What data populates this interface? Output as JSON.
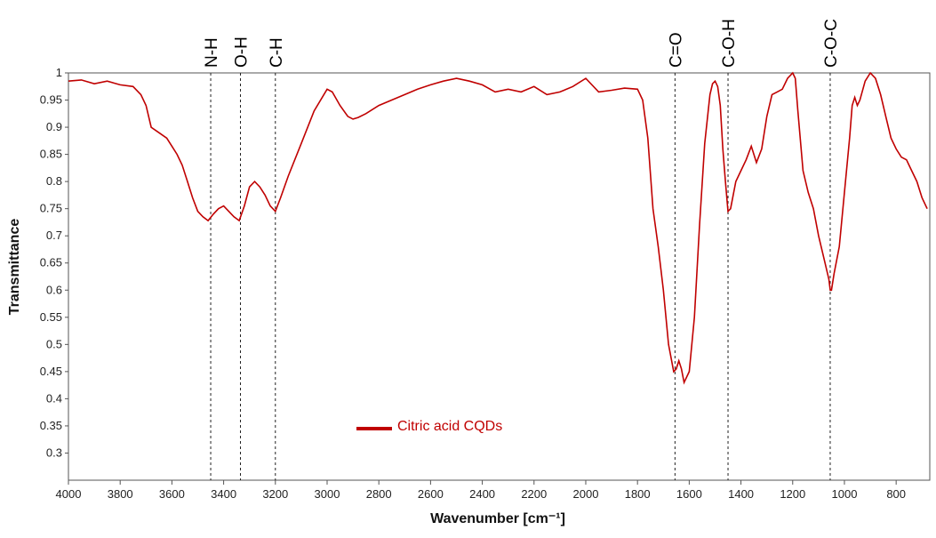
{
  "chart_data": {
    "type": "line",
    "xlabel": "Wavenumber [cm⁻¹]",
    "ylabel": "Transmittance",
    "xlim": [
      4000,
      670
    ],
    "ylim": [
      0.25,
      1.0
    ],
    "x_ticks": [
      4000,
      3800,
      3600,
      3400,
      3200,
      3000,
      2800,
      2600,
      2400,
      2200,
      2000,
      1800,
      1600,
      1400,
      1200,
      1000,
      800
    ],
    "y_ticks": [
      0.3,
      0.35,
      0.4,
      0.45,
      0.5,
      0.55,
      0.6,
      0.65,
      0.7,
      0.75,
      0.8,
      0.85,
      0.9,
      0.95,
      1
    ],
    "y_tick_labels": [
      "0.3",
      "0.35",
      "0.4",
      "0.45",
      "0.5",
      "0.55",
      "0.6",
      "0.65",
      "0.7",
      "0.75",
      "0.8",
      "0.85",
      "0.9",
      "0.95",
      "1"
    ],
    "grid": false,
    "series": [
      {
        "name": "Citric acid CQDs",
        "color": "#c00000",
        "x": [
          4000,
          3950,
          3900,
          3850,
          3800,
          3750,
          3720,
          3700,
          3680,
          3650,
          3620,
          3600,
          3580,
          3560,
          3540,
          3520,
          3500,
          3480,
          3460,
          3440,
          3420,
          3400,
          3380,
          3360,
          3340,
          3320,
          3300,
          3280,
          3260,
          3240,
          3220,
          3200,
          3180,
          3150,
          3100,
          3050,
          3000,
          2980,
          2950,
          2920,
          2900,
          2880,
          2850,
          2800,
          2750,
          2700,
          2650,
          2600,
          2550,
          2500,
          2450,
          2400,
          2350,
          2300,
          2250,
          2200,
          2150,
          2100,
          2050,
          2000,
          1950,
          1900,
          1850,
          1800,
          1780,
          1760,
          1740,
          1720,
          1700,
          1680,
          1660,
          1650,
          1640,
          1630,
          1620,
          1600,
          1580,
          1560,
          1540,
          1520,
          1510,
          1500,
          1490,
          1480,
          1470,
          1460,
          1450,
          1440,
          1420,
          1400,
          1380,
          1360,
          1340,
          1320,
          1300,
          1280,
          1260,
          1240,
          1220,
          1200,
          1190,
          1180,
          1160,
          1140,
          1120,
          1100,
          1080,
          1060,
          1055,
          1050,
          1040,
          1020,
          1000,
          980,
          970,
          960,
          950,
          940,
          920,
          900,
          880,
          860,
          840,
          820,
          800,
          780,
          760,
          740,
          720,
          700,
          680
        ],
        "y": [
          0.985,
          0.987,
          0.98,
          0.985,
          0.978,
          0.975,
          0.96,
          0.94,
          0.9,
          0.89,
          0.88,
          0.865,
          0.85,
          0.83,
          0.8,
          0.77,
          0.745,
          0.735,
          0.728,
          0.74,
          0.75,
          0.755,
          0.745,
          0.735,
          0.728,
          0.755,
          0.79,
          0.8,
          0.79,
          0.775,
          0.755,
          0.745,
          0.77,
          0.81,
          0.87,
          0.93,
          0.97,
          0.965,
          0.94,
          0.92,
          0.915,
          0.918,
          0.925,
          0.94,
          0.95,
          0.96,
          0.97,
          0.978,
          0.985,
          0.99,
          0.985,
          0.978,
          0.965,
          0.97,
          0.965,
          0.975,
          0.96,
          0.965,
          0.975,
          0.99,
          0.965,
          0.968,
          0.972,
          0.97,
          0.95,
          0.88,
          0.75,
          0.68,
          0.6,
          0.5,
          0.45,
          0.455,
          0.47,
          0.455,
          0.43,
          0.45,
          0.55,
          0.72,
          0.87,
          0.96,
          0.98,
          0.985,
          0.975,
          0.94,
          0.86,
          0.8,
          0.745,
          0.75,
          0.8,
          0.82,
          0.84,
          0.865,
          0.835,
          0.86,
          0.92,
          0.96,
          0.965,
          0.97,
          0.99,
          1.0,
          0.99,
          0.93,
          0.82,
          0.78,
          0.75,
          0.7,
          0.66,
          0.62,
          0.6,
          0.6,
          0.63,
          0.68,
          0.78,
          0.88,
          0.94,
          0.955,
          0.94,
          0.95,
          0.985,
          1.0,
          0.99,
          0.96,
          0.92,
          0.88,
          0.86,
          0.845,
          0.84,
          0.82,
          0.8,
          0.77,
          0.75
        ]
      }
    ],
    "annotations": [
      {
        "label": "N-H",
        "x": 3450
      },
      {
        "label": "O-H",
        "x": 3335
      },
      {
        "label": "C-H",
        "x": 3200
      },
      {
        "label": "C=O",
        "x": 1655
      },
      {
        "label": "C-O-H",
        "x": 1450
      },
      {
        "label": "C-O-C",
        "x": 1055
      }
    ],
    "legend": {
      "label": "Citric acid CQDs",
      "position": "bottom-left"
    }
  }
}
